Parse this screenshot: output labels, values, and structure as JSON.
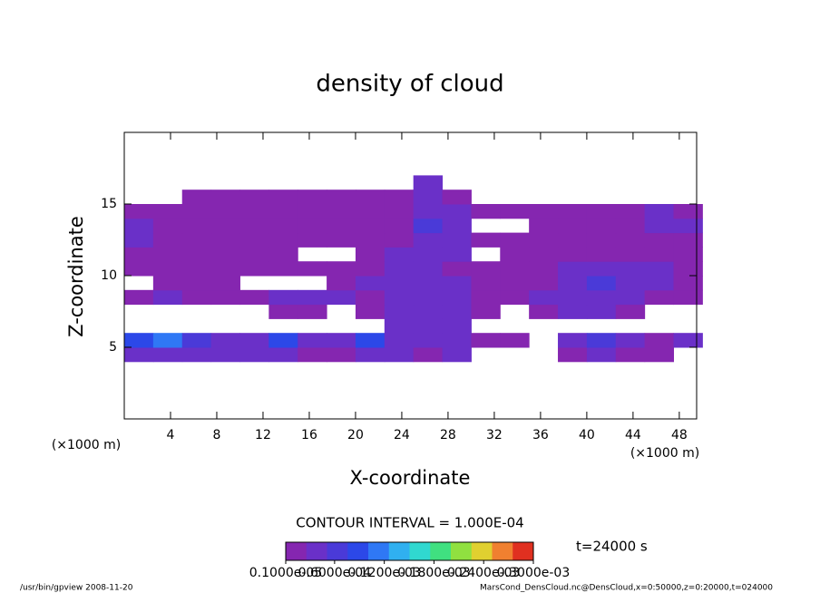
{
  "chart_data": {
    "type": "heatmap",
    "title": "density of cloud",
    "xlabel": "X-coordinate",
    "ylabel": "Z-coordinate",
    "x_unit_left": "(×1000 m)",
    "x_unit_right": "(×1000 m)",
    "xlim": [
      0,
      49.5
    ],
    "ylim": [
      0,
      20
    ],
    "xticks": [
      4,
      8,
      12,
      16,
      20,
      24,
      28,
      32,
      36,
      40,
      44,
      48
    ],
    "yticks": [
      5,
      10,
      15
    ],
    "x": [
      1.25,
      3.75,
      6.25,
      8.75,
      11.25,
      13.75,
      16.25,
      18.75,
      21.25,
      23.75,
      26.25,
      28.75,
      31.25,
      33.75,
      36.25,
      38.75,
      41.25,
      43.75,
      46.25,
      48.75
    ],
    "y": [
      4.5,
      5.5,
      6.5,
      7.5,
      8.5,
      9.5,
      10.5,
      11.5,
      12.5,
      13.5,
      14.5,
      15.5,
      16.5
    ],
    "values": [
      [
        3e-05,
        4e-05,
        3e-05,
        3e-05,
        4e-05,
        3e-05,
        2e-05,
        2e-05,
        3e-05,
        3e-05,
        2e-05,
        3e-05,
        null,
        null,
        null,
        2e-05,
        3e-05,
        2e-05,
        1.5e-05,
        null
      ],
      [
        8e-05,
        0.00012,
        6e-05,
        4e-05,
        5e-05,
        9e-05,
        4e-05,
        3e-05,
        0.0001,
        5e-05,
        3e-05,
        4e-05,
        2e-05,
        2e-05,
        null,
        3e-05,
        6e-05,
        4e-05,
        2e-05,
        5e-05
      ],
      [
        null,
        null,
        null,
        null,
        null,
        null,
        null,
        null,
        null,
        3e-05,
        4e-05,
        4e-05,
        null,
        null,
        null,
        null,
        null,
        null,
        null,
        null
      ],
      [
        null,
        null,
        null,
        null,
        null,
        1.5e-05,
        2e-05,
        null,
        2e-05,
        4e-05,
        5e-05,
        3e-05,
        2e-05,
        null,
        1.5e-05,
        3e-05,
        3e-05,
        2e-05,
        null,
        null
      ],
      [
        2e-05,
        3e-05,
        2e-05,
        1.5e-05,
        1.5e-05,
        3e-05,
        4e-05,
        3e-05,
        2e-05,
        5e-05,
        4e-05,
        3e-05,
        2e-05,
        2e-05,
        3e-05,
        4e-05,
        5e-05,
        3e-05,
        2e-05,
        1.5e-05
      ],
      [
        null,
        2e-05,
        1.5e-05,
        1e-05,
        null,
        null,
        null,
        2e-05,
        3e-05,
        3e-05,
        4e-05,
        3e-05,
        2e-05,
        1.5e-05,
        2e-05,
        4e-05,
        6e-05,
        5e-05,
        3e-05,
        2e-05
      ],
      [
        2e-05,
        1.5e-05,
        1e-05,
        1e-05,
        2e-05,
        2e-05,
        1e-05,
        1.5e-05,
        2e-05,
        3e-05,
        4e-05,
        2e-05,
        2e-05,
        1e-05,
        1.5e-05,
        3e-05,
        4e-05,
        5e-05,
        3e-05,
        2e-05
      ],
      [
        2e-05,
        1.5e-05,
        1e-05,
        1e-05,
        2e-05,
        1.5e-05,
        null,
        null,
        1.5e-05,
        3e-05,
        5e-05,
        3e-05,
        null,
        1.5e-05,
        1e-05,
        1e-05,
        2e-05,
        1.5e-05,
        1e-05,
        2e-05
      ],
      [
        3e-05,
        1.5e-05,
        1e-05,
        1e-05,
        1e-05,
        1.5e-05,
        1.5e-05,
        1.5e-05,
        1.5e-05,
        1.5e-05,
        5e-05,
        4e-05,
        1.5e-05,
        1.5e-05,
        1.5e-05,
        1.5e-05,
        1.5e-05,
        1.5e-05,
        1.5e-05,
        2e-05
      ],
      [
        4e-05,
        1.5e-05,
        1.5e-05,
        1.5e-05,
        1.5e-05,
        1.5e-05,
        1e-05,
        1e-05,
        1e-05,
        1e-05,
        6e-05,
        4e-05,
        null,
        null,
        2e-05,
        1.5e-05,
        1e-05,
        2e-05,
        5e-05,
        3e-05
      ],
      [
        1.5e-05,
        1.5e-05,
        1.5e-05,
        1.5e-05,
        1.5e-05,
        1.5e-05,
        1.5e-05,
        1.5e-05,
        1.5e-05,
        1.5e-05,
        5e-05,
        5e-05,
        1.5e-05,
        1.5e-05,
        1.5e-05,
        1.5e-05,
        1.5e-05,
        1.5e-05,
        4e-05,
        1.5e-05
      ],
      [
        null,
        null,
        1e-05,
        1e-05,
        1e-05,
        1e-05,
        1e-05,
        1e-05,
        1e-05,
        1e-05,
        4e-05,
        2e-05,
        null,
        null,
        null,
        null,
        null,
        null,
        null,
        null
      ],
      [
        null,
        null,
        null,
        null,
        null,
        null,
        null,
        null,
        null,
        null,
        3e-05,
        null,
        null,
        null,
        null,
        null,
        null,
        null,
        null,
        null
      ]
    ],
    "colors": [
      "#8526b0",
      "#6a30c8",
      "#4a3ad8",
      "#2c48e8",
      "#2f78f5",
      "#30b0f0",
      "#30d8d0",
      "#40e080",
      "#90e040",
      "#e0d030",
      "#f08030",
      "#e03020"
    ],
    "contour_interval": "CONTOUR INTERVAL = 1.000E-04",
    "time_label": "t=24000 s",
    "colorbar_ticks": [
      {
        "value": 1e-06,
        "label": "0.1000e-05"
      },
      {
        "value": 6e-05,
        "label": "0.6000e-04"
      },
      {
        "value": 0.00012,
        "label": "0.1200e-03"
      },
      {
        "value": 0.00018,
        "label": "0.1800e-03"
      },
      {
        "value": 0.00024,
        "label": "0.2400e-03"
      },
      {
        "value": 0.0003,
        "label": "0.3000e-03"
      }
    ],
    "footer_left": "/usr/bin/gpview  2008-11-20",
    "footer_right": "MarsCond_DensCloud.nc@DensCloud,x=0:50000,z=0:20000,t=024000"
  }
}
